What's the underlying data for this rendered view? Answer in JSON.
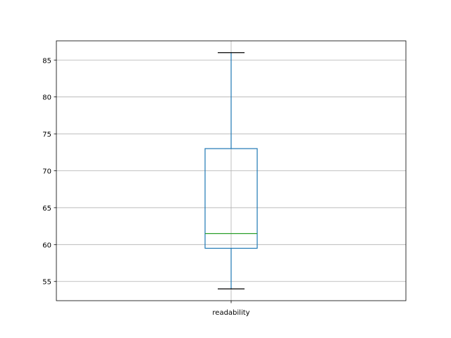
{
  "chart_data": {
    "type": "box",
    "categories": [
      "readability"
    ],
    "boxes": [
      {
        "label": "readability",
        "whisker_low": 54,
        "q1": 59.5,
        "median": 61.5,
        "q3": 73,
        "whisker_high": 86
      }
    ],
    "ylim": [
      52.4,
      87.6
    ],
    "yticks": [
      55,
      60,
      65,
      70,
      75,
      80,
      85
    ],
    "grid": true,
    "colors": {
      "box": "#1f77b4",
      "median": "#2ca02c",
      "caps": "#000000",
      "grid": "#b0b0b0"
    }
  }
}
